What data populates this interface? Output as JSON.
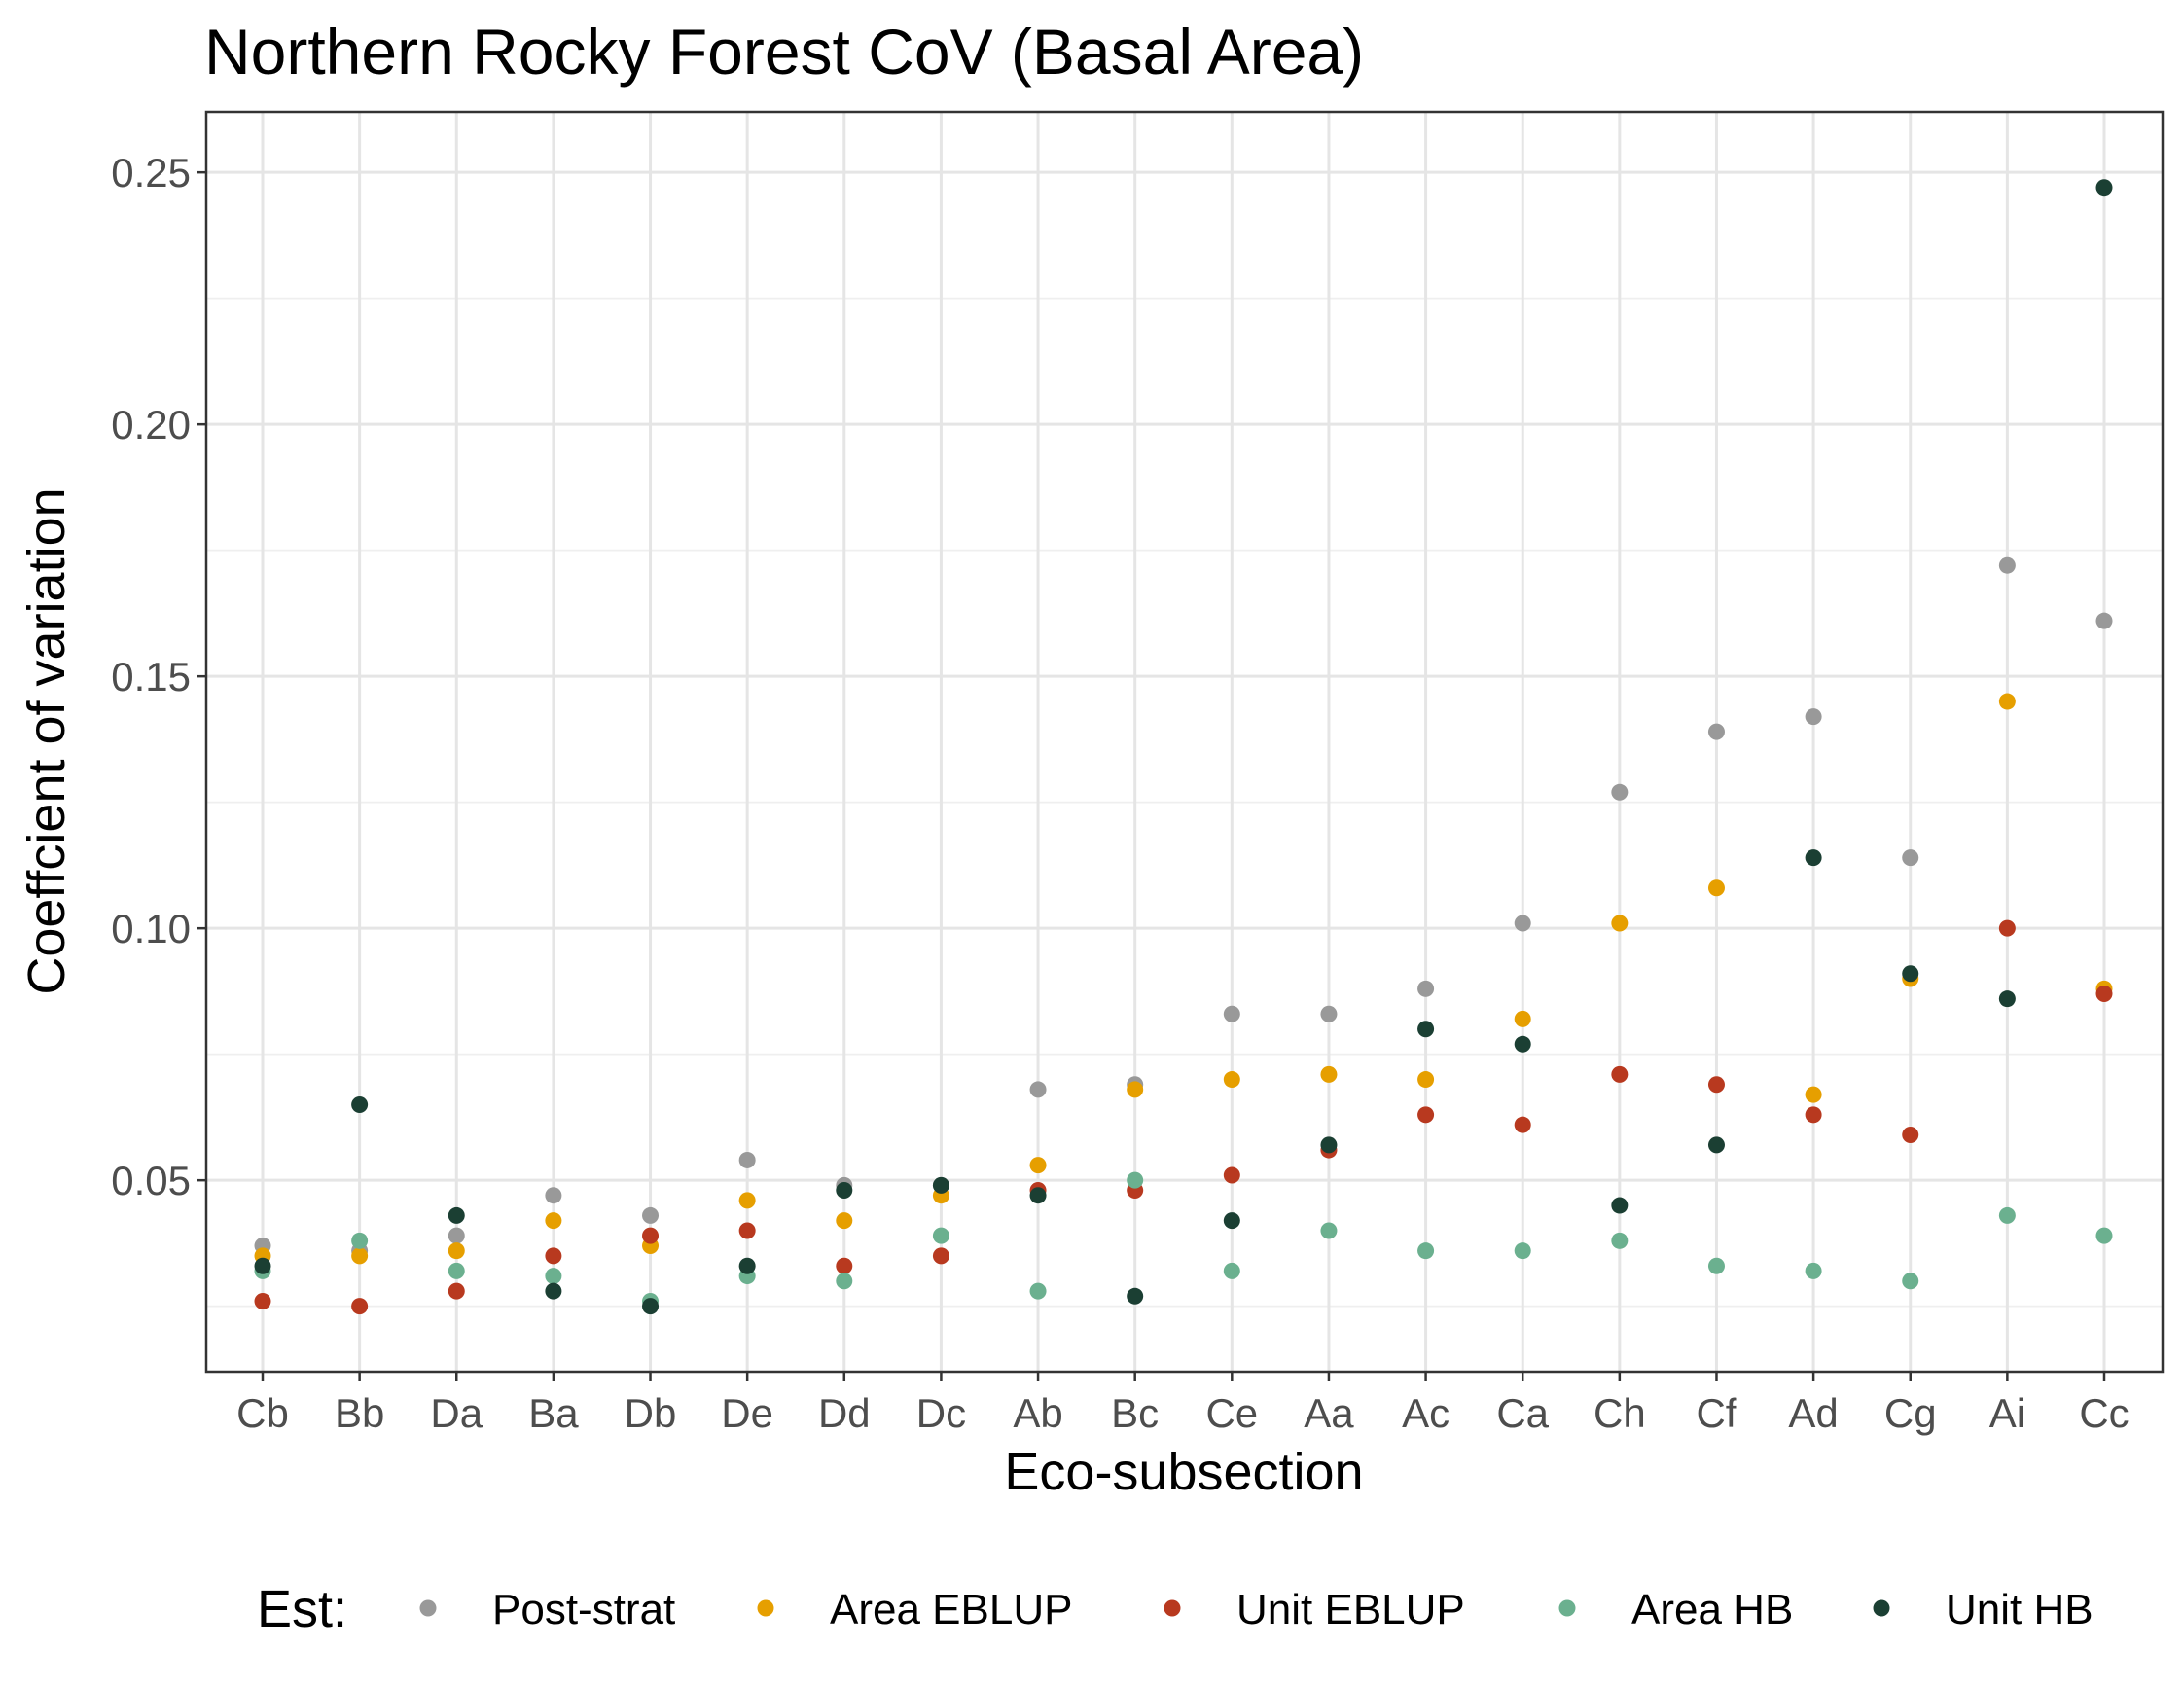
{
  "chart_data": {
    "type": "scatter",
    "title": "Northern Rocky Forest CoV (Basal Area)",
    "xlabel": "Eco-subsection",
    "ylabel": "Coeffcient of variation",
    "ylim": [
      0.012,
      0.262
    ],
    "yticks": [
      "0.05",
      "0.10",
      "0.15",
      "0.20",
      "0.25"
    ],
    "grid": true,
    "legend_position": "bottom",
    "legend_title": "Est:",
    "categories": [
      "Cb",
      "Bb",
      "Da",
      "Ba",
      "Db",
      "De",
      "Dd",
      "Dc",
      "Ab",
      "Bc",
      "Ce",
      "Aa",
      "Ac",
      "Ca",
      "Ch",
      "Cf",
      "Ad",
      "Cg",
      "Ai",
      "Cc"
    ],
    "series": [
      {
        "name": "Post-strat",
        "color": "#999999",
        "values": [
          0.037,
          0.036,
          0.039,
          0.047,
          0.043,
          0.054,
          0.049,
          0.049,
          0.068,
          0.069,
          0.083,
          0.083,
          0.088,
          0.101,
          0.127,
          0.139,
          0.142,
          0.114,
          0.172,
          0.161
        ]
      },
      {
        "name": "Area EBLUP",
        "color": "#E69F00",
        "values": [
          0.035,
          0.035,
          0.036,
          0.042,
          0.037,
          0.046,
          0.042,
          0.047,
          0.053,
          0.068,
          0.07,
          0.071,
          0.07,
          0.082,
          0.101,
          0.108,
          0.067,
          0.09,
          0.145,
          0.088
        ]
      },
      {
        "name": "Unit EBLUP",
        "color": "#B8391F",
        "values": [
          0.026,
          0.025,
          0.028,
          0.035,
          0.039,
          0.04,
          0.033,
          0.035,
          0.048,
          0.048,
          0.051,
          0.056,
          0.063,
          0.061,
          0.071,
          0.069,
          0.063,
          0.059,
          0.1,
          0.087
        ]
      },
      {
        "name": "Area HB",
        "color": "#6BB08F",
        "values": [
          0.032,
          0.038,
          0.032,
          0.031,
          0.026,
          0.031,
          0.03,
          0.039,
          0.028,
          0.05,
          0.032,
          0.04,
          0.036,
          0.036,
          0.038,
          0.033,
          0.032,
          0.03,
          0.043,
          0.039
        ]
      },
      {
        "name": "Unit HB",
        "color": "#1B3F33",
        "values": [
          0.033,
          0.065,
          0.043,
          0.028,
          0.025,
          0.033,
          0.048,
          0.049,
          0.047,
          0.027,
          0.042,
          0.057,
          0.08,
          0.077,
          0.045,
          0.057,
          0.114,
          0.091,
          0.086,
          0.247
        ]
      }
    ]
  }
}
